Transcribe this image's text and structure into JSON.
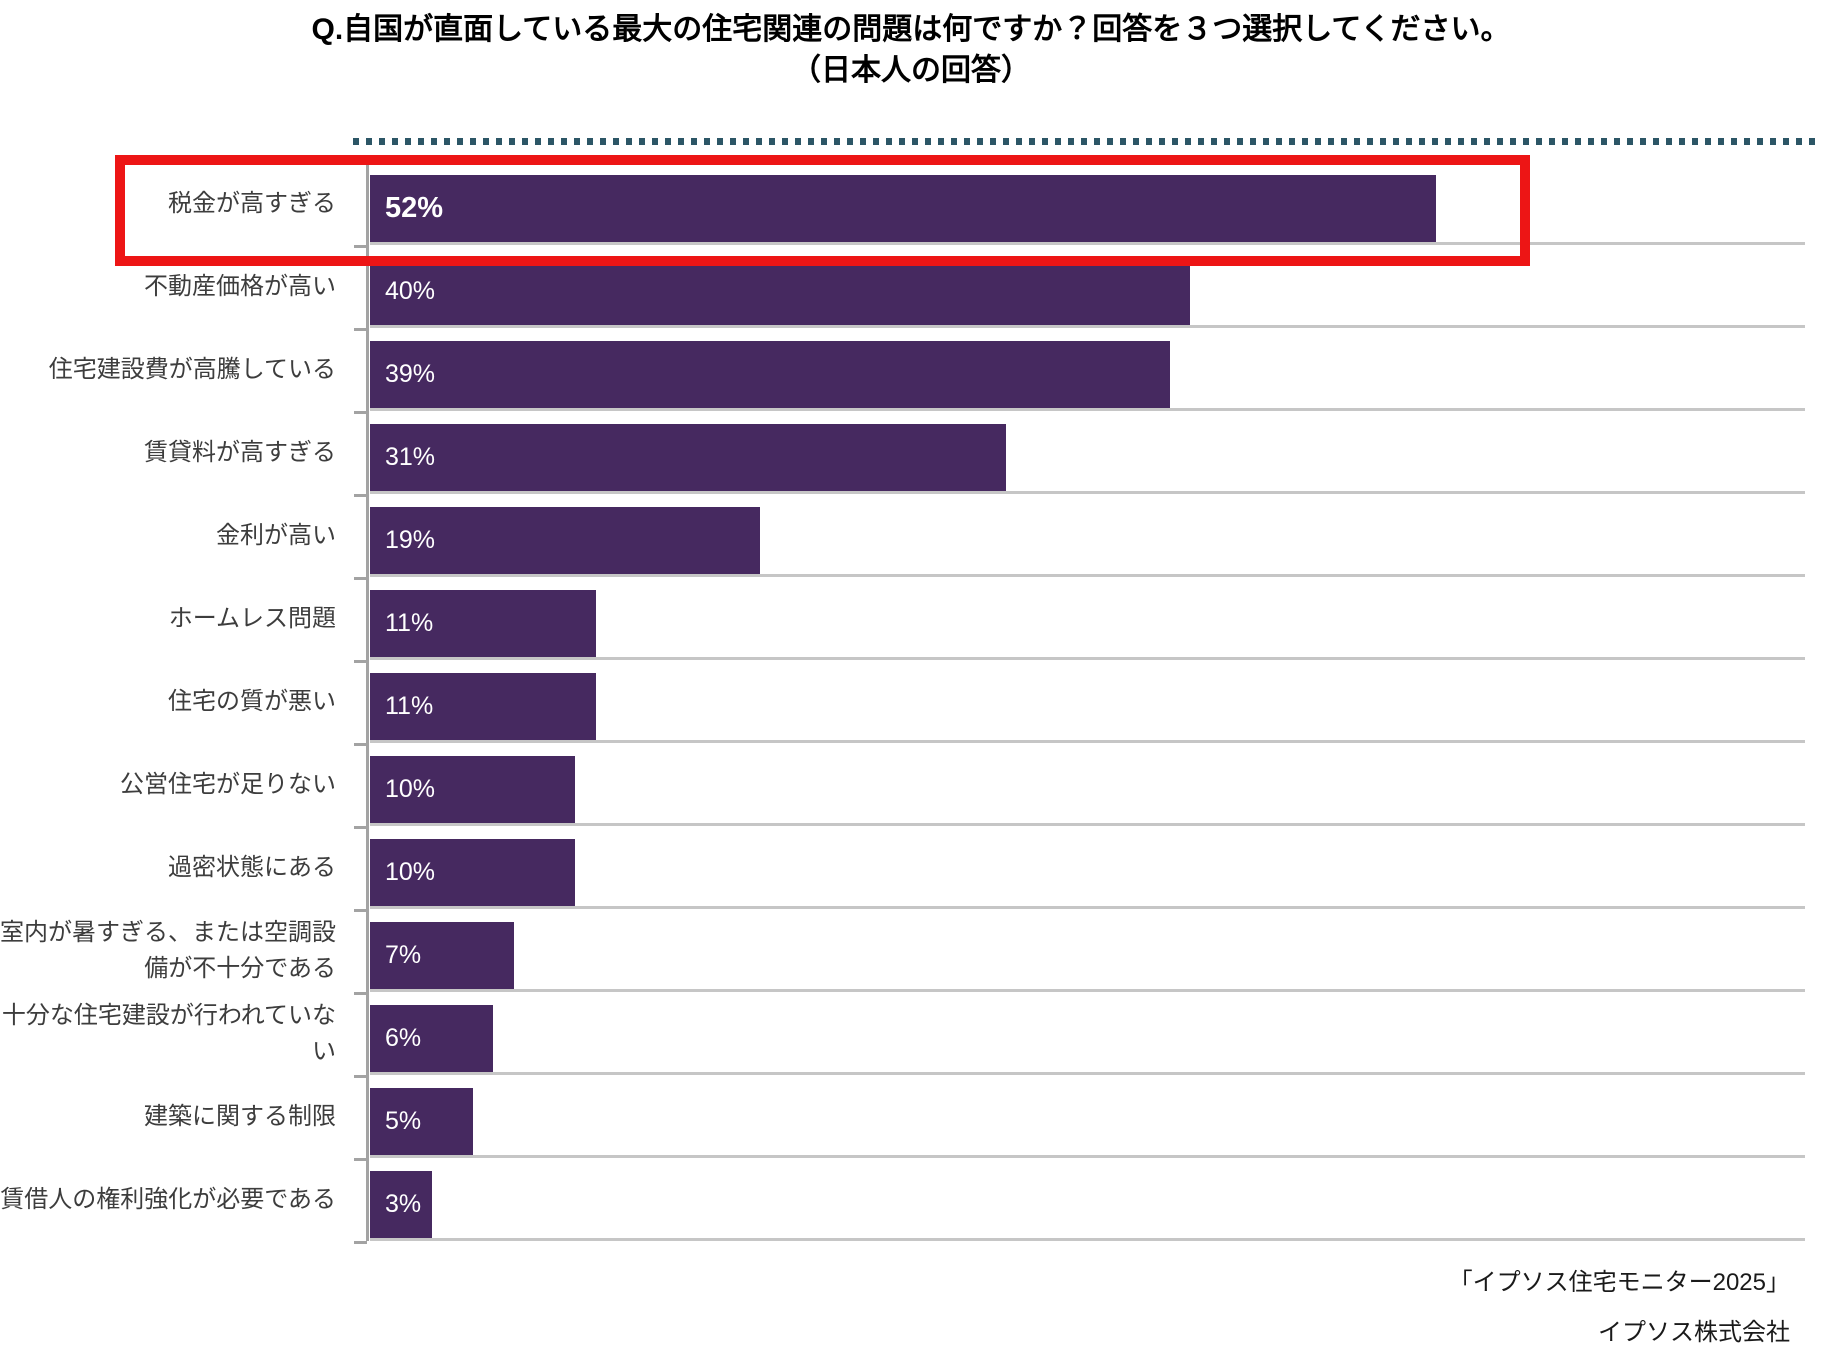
{
  "title": {
    "line1": "Q.自国が直面している最大の住宅関連の問題は何ですか？回答を３つ選択してください。",
    "line2": "（日本人の回答）"
  },
  "chart_data": {
    "type": "bar",
    "orientation": "horizontal",
    "title": "Q.自国が直面している最大の住宅関連の問題は何ですか？回答を３つ選択してください。（日本人の回答）",
    "categories": [
      "税金が高すぎる",
      "不動産価格が高い",
      "住宅建設費が高騰している",
      "賃貸料が高すぎる",
      "金利が高い",
      "ホームレス問題",
      "住宅の質が悪い",
      "公営住宅が足りない",
      "過密状態にある",
      "室内が暑すぎる、または空調設備が不十分である",
      "十分な住宅建設が行われていない",
      "建築に関する制限",
      "賃借人の権利強化が必要である"
    ],
    "values": [
      52,
      40,
      39,
      31,
      19,
      11,
      11,
      10,
      10,
      7,
      6,
      5,
      3
    ],
    "value_labels": [
      "52%",
      "40%",
      "39%",
      "31%",
      "19%",
      "11%",
      "11%",
      "10%",
      "10%",
      "7%",
      "6%",
      "5%",
      "3%"
    ],
    "xlabel": "",
    "ylabel": "",
    "xlim": [
      0,
      70
    ],
    "grid": "row separators only, no value axis shown",
    "legend": "none",
    "highlighted_index": 0,
    "highlight_style": "red outline box around first row label and bar area",
    "colors": {
      "bar": "#462960",
      "highlight_box": "#ed1515",
      "dotted_top_line": "#2c5666",
      "row_separator": "#c6c6c6",
      "axis": "#a3a3a3",
      "bar_value_text": "#ffffff",
      "category_text": "#3d3d3d"
    }
  },
  "footer": {
    "source": "「イプソス住宅モニター2025」",
    "company": "イプソス株式会社"
  }
}
